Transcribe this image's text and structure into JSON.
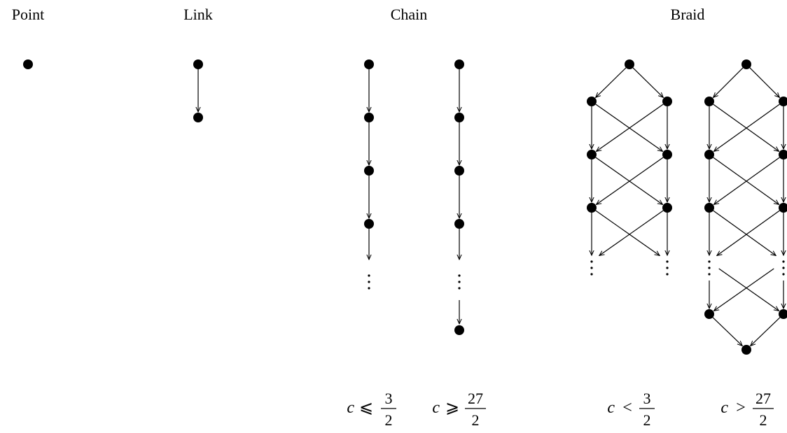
{
  "titles": {
    "point": "Point",
    "link": "Link",
    "chain": "Chain",
    "braid": "Braid"
  },
  "conditions": {
    "chain_left": {
      "var": "c",
      "op": "⩽",
      "num": "3",
      "den": "2"
    },
    "chain_right": {
      "var": "c",
      "op": "⩾",
      "num": "27",
      "den": "2"
    },
    "braid_left": {
      "var": "c",
      "op": "<",
      "num": "3",
      "den": "2"
    },
    "braid_right": {
      "var": "c",
      "op": ">",
      "num": "27",
      "den": "2"
    }
  },
  "colors": {
    "ink": "#000000",
    "background": "#ffffff"
  }
}
